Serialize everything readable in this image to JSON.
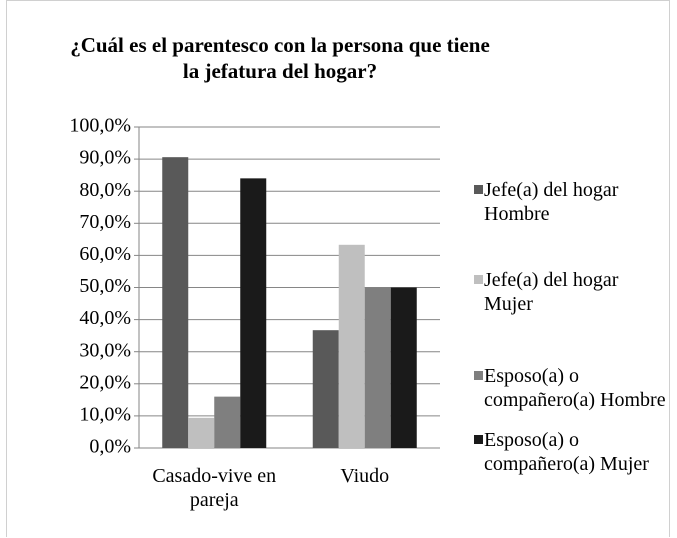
{
  "chart_data": {
    "type": "bar",
    "title": "¿Cuál es el parentesco con la persona que tiene la jefatura del hogar?",
    "categories": [
      "Casado-vive en pareja",
      "Viudo"
    ],
    "series": [
      {
        "name": "Jefe(a) del hogar Hombre",
        "color": "#595959",
        "values": [
          90.6,
          36.7
        ]
      },
      {
        "name": "Jefe(a) del hogar Mujer",
        "color": "#bfbfbf",
        "values": [
          9.4,
          63.3
        ]
      },
      {
        "name": "Esposo(a) o compañero(a) Hombre",
        "color": "#7f7f7f",
        "values": [
          16.0,
          50.0
        ]
      },
      {
        "name": "Esposo(a) o compañero(a) Mujer",
        "color": "#1a1a1a",
        "values": [
          84.0,
          50.0
        ]
      }
    ],
    "ylim": [
      0,
      100
    ],
    "yticks": [
      {
        "value": 0,
        "label": "0,0%"
      },
      {
        "value": 10,
        "label": "10,0%"
      },
      {
        "value": 20,
        "label": "20,0%"
      },
      {
        "value": 30,
        "label": "30,0%"
      },
      {
        "value": 40,
        "label": "40,0%"
      },
      {
        "value": 50,
        "label": "50,0%"
      },
      {
        "value": 60,
        "label": "60,0%"
      },
      {
        "value": 70,
        "label": "70,0%"
      },
      {
        "value": 80,
        "label": "80,0%"
      },
      {
        "value": 90,
        "label": "90,0%"
      },
      {
        "value": 100,
        "label": "100,0%"
      }
    ],
    "grid": true,
    "legend": "right"
  }
}
